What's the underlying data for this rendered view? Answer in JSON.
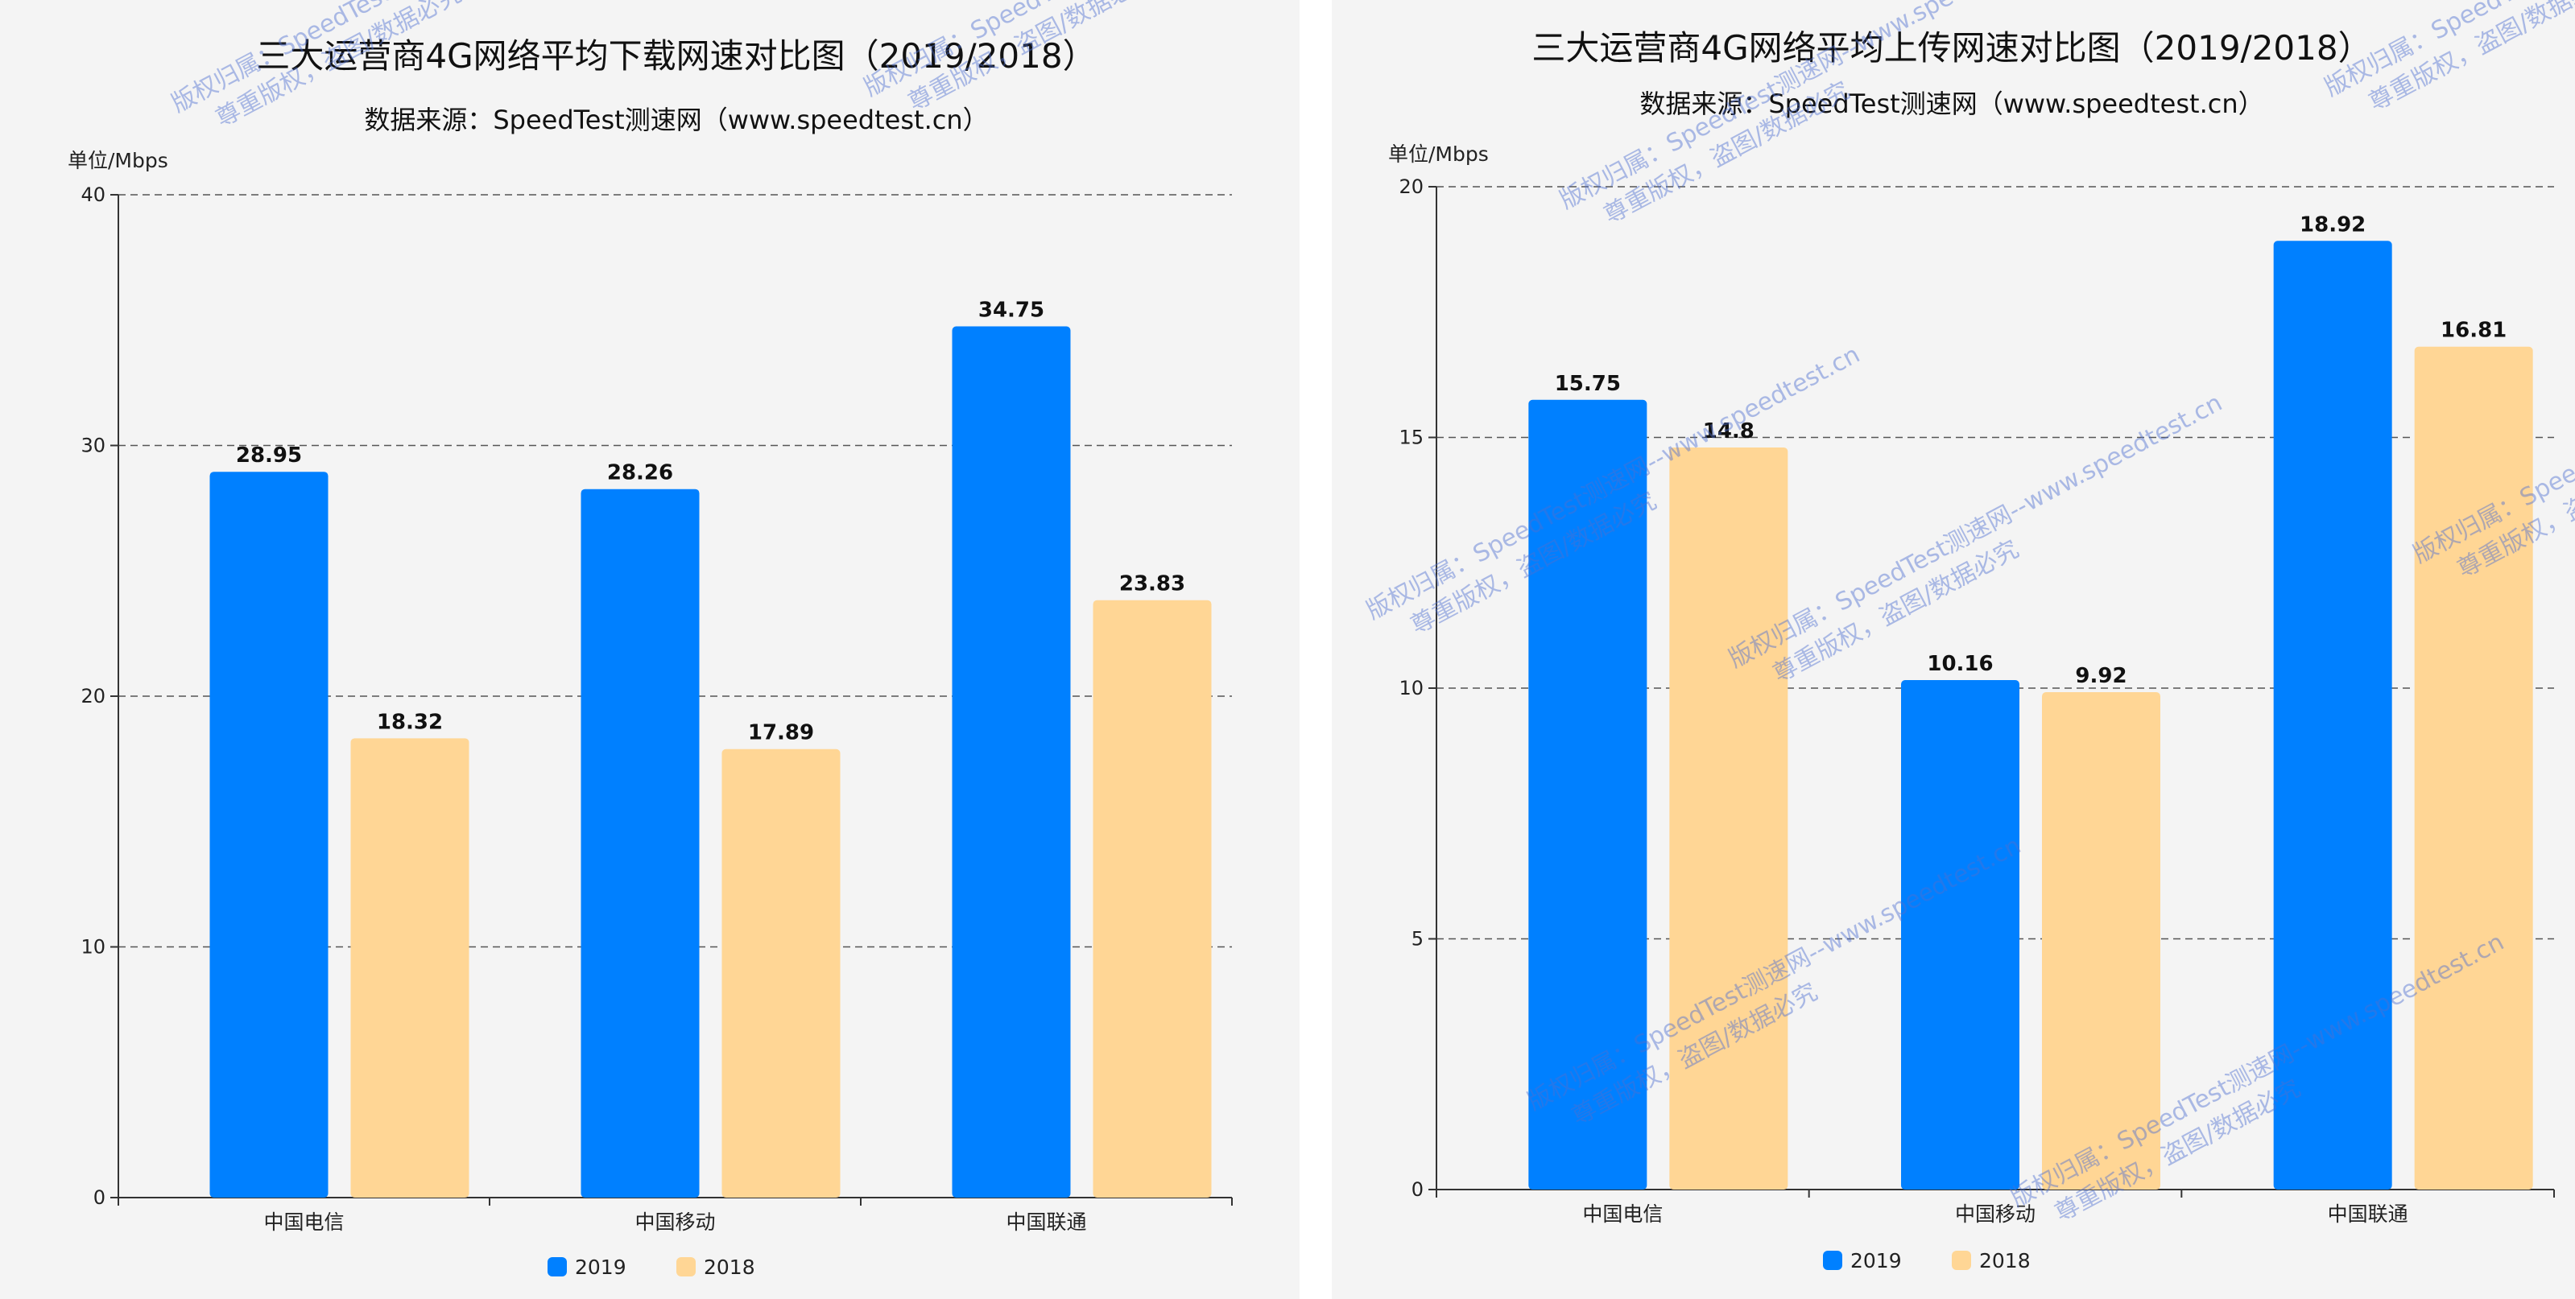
{
  "charts": [
    {
      "chart_data": {
        "type": "bar",
        "title": "三大运营商4G网络平均下载网速对比图（2019/2018）",
        "subtitle": "数据来源：SpeedTest测速网（www.speedtest.cn）",
        "ylabel": "单位/Mbps",
        "categories": [
          "中国电信",
          "中国移动",
          "中国联通"
        ],
        "series": [
          {
            "name": "2019",
            "values": [
              28.95,
              28.26,
              34.75
            ],
            "labels": [
              "28.95",
              "28.26",
              "34.75"
            ],
            "color": "#0080ff"
          },
          {
            "name": "2018",
            "values": [
              18.32,
              17.89,
              23.83
            ],
            "labels": [
              "18.32",
              "17.89",
              "23.83"
            ],
            "color": "#ffd695"
          }
        ],
        "ylim": [
          0,
          40
        ],
        "yticks": [
          "0",
          "10",
          "20",
          "30",
          "40"
        ],
        "grid": true,
        "legend": "bottom-center"
      }
    },
    {
      "chart_data": {
        "type": "bar",
        "title": "三大运营商4G网络平均上传网速对比图（2019/2018）",
        "subtitle": "数据来源：SpeedTest测速网（www.speedtest.cn）",
        "ylabel": "单位/Mbps",
        "categories": [
          "中国电信",
          "中国移动",
          "中国联通"
        ],
        "series": [
          {
            "name": "2019",
            "values": [
              15.75,
              10.16,
              18.92
            ],
            "labels": [
              "15.75",
              "10.16",
              "18.92"
            ],
            "color": "#0080ff"
          },
          {
            "name": "2018",
            "values": [
              14.8,
              9.92,
              16.81
            ],
            "labels": [
              "14.8",
              "9.92",
              "16.81"
            ],
            "color": "#ffd695"
          }
        ],
        "ylim": [
          0,
          20
        ],
        "yticks": [
          "0",
          "5",
          "10",
          "15",
          "20"
        ],
        "grid": true,
        "legend": "bottom-center"
      }
    }
  ],
  "watermark": {
    "line1": "版权归属：SpeedTest测速网--www.speedtest.cn",
    "line2": "尊重版权，盗图/数据必究"
  }
}
